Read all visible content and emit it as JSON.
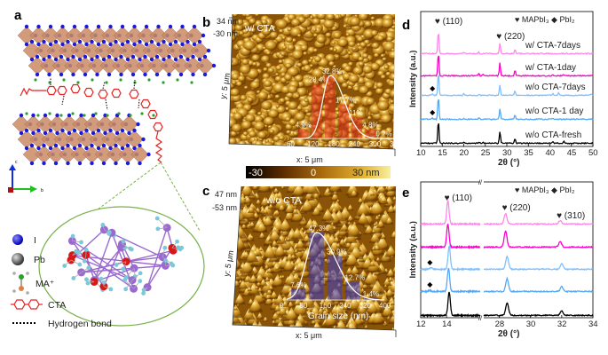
{
  "panel_labels": {
    "a": "a",
    "b": "b",
    "c": "c",
    "d": "d",
    "e": "e"
  },
  "panel_a": {
    "legend": [
      {
        "icon": "iodine-atom-icon",
        "label": "I",
        "color": "#1a1ad8"
      },
      {
        "icon": "lead-atom-icon",
        "label": "Pb",
        "color": "#555555"
      },
      {
        "icon": "ma-cation-icon",
        "label": "MA⁺",
        "color": "#2e9e2e"
      },
      {
        "icon": "cta-molecule-icon",
        "label": "CTA",
        "color": "#e82020"
      },
      {
        "icon": "hydrogen-bond-icon",
        "label": "Hydrogen bond",
        "color": "#000000"
      }
    ],
    "axis_labels": {
      "c": "c",
      "b": "b"
    },
    "colors": {
      "octahedra": "#c98a66",
      "iodine": "#1a1ad8",
      "chain": "#e82020",
      "circle": "#78b048",
      "carbon": "#9a6ad0",
      "oxygen": "#d81818",
      "hydrogen": "#7cc8d8"
    }
  },
  "panel_b": {
    "title": "w/ CTA",
    "z_max": "34 nm",
    "z_min": "-30 nm",
    "x_axis": "x: 5 μm",
    "y_axis": "y: 5 μm",
    "histogram": {
      "ticks": [
        "60",
        "120",
        "180",
        "240",
        "300",
        "360"
      ],
      "values": [
        4.9,
        28.4,
        32.8,
        17.7,
        11,
        4.8,
        0.2
      ],
      "labels": [
        "4.9%",
        "28.4%",
        "32.8%",
        "17.7%",
        "11%",
        "4.8%",
        "0.2%"
      ],
      "bar_color": "#e03020"
    }
  },
  "colorbar": {
    "min_label": "-30",
    "mid_label": "0",
    "max_label": "30 nm",
    "colors": [
      "#000000",
      "#5a2a00",
      "#b07010",
      "#e0b030",
      "#f8f0a0"
    ]
  },
  "panel_c": {
    "title": "w/o CTA",
    "z_max": "47 nm",
    "z_min": "-53 nm",
    "x_axis": "x: 5 μm",
    "y_axis": "y: 5 μm",
    "histogram": {
      "ticks": [
        "0",
        "80",
        "160",
        "240",
        "320",
        "400"
      ],
      "xlabel": "Grain size (nm)",
      "values": [
        7.6,
        47.3,
        30.9,
        12.7,
        1.4
      ],
      "labels": [
        "7.6%",
        "47.3%",
        "30.9%",
        "12.7%",
        "1.4%"
      ],
      "bar_color": "#3a3ad0"
    }
  },
  "chart_data": [
    {
      "type": "line",
      "panel": "d",
      "xlabel": "2θ (°)",
      "ylabel": "Intensity (a.u.)",
      "xlim": [
        10,
        50
      ],
      "xticks": [
        "10",
        "15",
        "20",
        "25",
        "30",
        "35",
        "40",
        "45",
        "50"
      ],
      "legend": {
        "phase1": "MAPbI₃",
        "phase2": "PbI₂",
        "phase1_marker": "♥",
        "phase2_marker": "◆"
      },
      "annotations": [
        {
          "label": "(110)",
          "x": 14.1
        },
        {
          "label": "(220)",
          "x": 28.4
        }
      ],
      "series": [
        {
          "name": "w/ CTA-7days",
          "color": "#ff88e8",
          "peaks": [
            [
              14.1,
              1.0
            ],
            [
              20.0,
              0.04
            ],
            [
              23.5,
              0.05
            ],
            [
              28.4,
              0.45
            ],
            [
              31.9,
              0.2
            ]
          ]
        },
        {
          "name": "w/ CTA-1day",
          "color": "#ff00cc",
          "peaks": [
            [
              14.1,
              1.0
            ],
            [
              23.5,
              0.1
            ],
            [
              24.5,
              0.06
            ],
            [
              28.4,
              0.6
            ],
            [
              31.9,
              0.25
            ],
            [
              40.7,
              0.05
            ],
            [
              43.2,
              0.05
            ]
          ]
        },
        {
          "name": "w/o CTA-7days",
          "color": "#80c0ff",
          "pbi2": true,
          "peaks": [
            [
              12.7,
              0.08
            ],
            [
              14.1,
              1.0
            ],
            [
              20.0,
              0.05
            ],
            [
              23.5,
              0.06
            ],
            [
              28.4,
              0.45
            ],
            [
              31.9,
              0.22
            ],
            [
              40.7,
              0.06
            ],
            [
              42.0,
              0.1
            ],
            [
              49.5,
              0.06
            ]
          ]
        },
        {
          "name": "w/o CTA-1 day",
          "color": "#55a8f5",
          "pbi2": true,
          "peaks": [
            [
              12.7,
              0.06
            ],
            [
              14.1,
              1.0
            ],
            [
              20.0,
              0.06
            ],
            [
              23.5,
              0.06
            ],
            [
              28.4,
              0.48
            ],
            [
              31.9,
              0.2
            ],
            [
              40.7,
              0.05
            ]
          ]
        },
        {
          "name": "w/o CTA-fresh",
          "color": "#000000",
          "peaks": [
            [
              14.1,
              1.0
            ],
            [
              20.0,
              0.05
            ],
            [
              23.5,
              0.06
            ],
            [
              24.5,
              0.07
            ],
            [
              28.4,
              0.5
            ],
            [
              31.9,
              0.2
            ],
            [
              40.7,
              0.06
            ],
            [
              43.2,
              0.08
            ]
          ]
        }
      ]
    },
    {
      "type": "line",
      "panel": "e",
      "xlabel": "2θ (°)",
      "ylabel": "Intensity (a.u.)",
      "xlim": [
        12,
        34
      ],
      "axis_break": [
        16.6,
        27.0
      ],
      "xticks": [
        "12",
        "14",
        "28",
        "30",
        "32",
        "34"
      ],
      "legend": {
        "phase1": "MAPbI₃",
        "phase2": "PbI₂",
        "phase1_marker": "♥",
        "phase2_marker": "◆"
      },
      "annotations": [
        {
          "label": "(110)",
          "x": 14.1
        },
        {
          "label": "(220)",
          "x": 28.4
        },
        {
          "label": "(310)",
          "x": 31.9
        }
      ],
      "series": [
        {
          "name": "w/ CTA-7days",
          "color": "#ff88e8",
          "peaks": [
            [
              14.1,
              1.0
            ],
            [
              28.4,
              0.45
            ],
            [
              31.9,
              0.15
            ]
          ]
        },
        {
          "name": "w/ CTA-1day",
          "color": "#ff00cc",
          "peaks": [
            [
              14.1,
              1.0
            ],
            [
              28.4,
              0.7
            ],
            [
              31.9,
              0.25
            ]
          ]
        },
        {
          "name": "w/o CTA-7days",
          "color": "#80c0ff",
          "pbi2": true,
          "peaks": [
            [
              12.8,
              0.08
            ],
            [
              14.2,
              1.0
            ],
            [
              28.5,
              0.55
            ],
            [
              32.0,
              0.25
            ]
          ]
        },
        {
          "name": "w/o CTA-1 day",
          "color": "#55a8f5",
          "pbi2": true,
          "peaks": [
            [
              12.7,
              0.05
            ],
            [
              14.15,
              1.0
            ],
            [
              28.5,
              0.55
            ],
            [
              32.0,
              0.2
            ]
          ]
        },
        {
          "name": "w/o CTA-fresh",
          "color": "#000000",
          "peaks": [
            [
              14.2,
              1.0
            ],
            [
              28.5,
              0.55
            ],
            [
              32.0,
              0.2
            ]
          ]
        }
      ]
    }
  ]
}
